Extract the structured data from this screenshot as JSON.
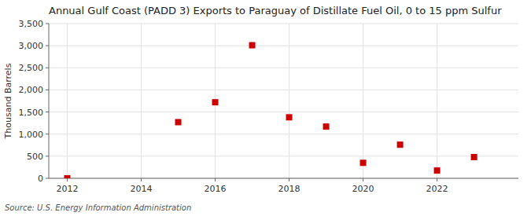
{
  "chart_data": {
    "type": "scatter",
    "title": "Annual Gulf Coast (PADD 3) Exports to Paraguay of Distillate Fuel Oil, 0 to 15 ppm Sulfur",
    "ylabel": "Thousand Barrels",
    "source": "Source: U.S. Energy Information Administration",
    "x": [
      2012,
      2015,
      2016,
      2017,
      2018,
      2019,
      2020,
      2021,
      2022,
      2023
    ],
    "values": [
      0,
      1270,
      1720,
      3010,
      1380,
      1170,
      350,
      760,
      175,
      480
    ],
    "color": "#cc0000",
    "marker": "square",
    "xlim": [
      2011.5,
      2024.2
    ],
    "ylim": [
      0,
      3500
    ],
    "xticks": [
      2012,
      2014,
      2016,
      2018,
      2020,
      2022
    ],
    "yticks": [
      0,
      500,
      {
        "value": 1000,
        "label": "1,000"
      },
      {
        "value": 1500,
        "label": "1,500"
      },
      {
        "value": 2000,
        "label": "2,000"
      },
      {
        "value": 2500,
        "label": "2,500"
      },
      {
        "value": 3000,
        "label": "3,000"
      },
      {
        "value": 3500,
        "label": "3,500"
      }
    ],
    "grid": true
  }
}
